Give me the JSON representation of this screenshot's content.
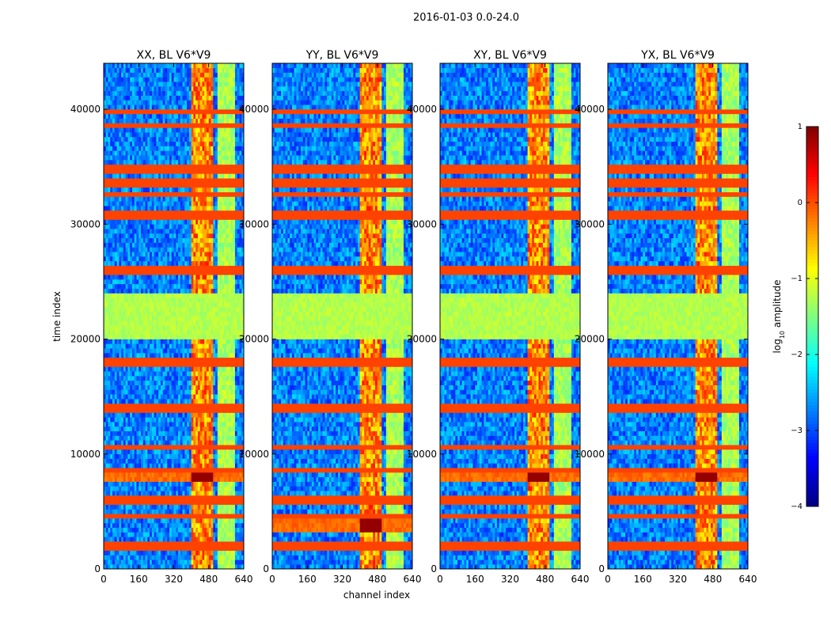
{
  "chart_data": {
    "type": "heatmap",
    "suptitle": "2016-01-03 0.0-24.0",
    "xlabel": "channel index",
    "ylabel": "time index",
    "xlim": [
      0,
      640
    ],
    "ylim": [
      0,
      44000
    ],
    "xticks": [
      "0",
      "160",
      "320",
      "480",
      "640"
    ],
    "xtick_values": [
      0,
      160,
      320,
      480,
      640
    ],
    "yticks": [
      "0",
      "10000",
      "20000",
      "30000",
      "40000"
    ],
    "ytick_values": [
      0,
      10000,
      20000,
      30000,
      40000
    ],
    "panels": [
      {
        "title": "XX, BL V6*V9",
        "pol": "XX",
        "feature_time": 8000
      },
      {
        "title": "YY, BL V6*V9",
        "pol": "YY",
        "feature_time": 3800
      },
      {
        "title": "XY, BL V6*V9",
        "pol": "XY",
        "feature_time": 8000
      },
      {
        "title": "YX, BL V6*V9",
        "pol": "YX",
        "feature_time": 8000
      }
    ],
    "colorbar": {
      "label": "log",
      "label_sub": "10",
      "label_rest": " amplitude",
      "range": [
        -4,
        1
      ],
      "ticks": [
        "1",
        "0",
        "−1",
        "−2",
        "−3",
        "−4"
      ],
      "tick_values": [
        1,
        0,
        -1,
        -2,
        -3,
        -4
      ]
    },
    "bright_channel_band": [
      400,
      500
    ],
    "flagged_time_rows": [
      39800,
      38500,
      34800,
      33600,
      32500,
      31000,
      30600,
      26000,
      18000,
      14000,
      10500,
      8500,
      6000,
      4500,
      2000
    ],
    "noisy_time_band": [
      20000,
      24000
    ]
  }
}
